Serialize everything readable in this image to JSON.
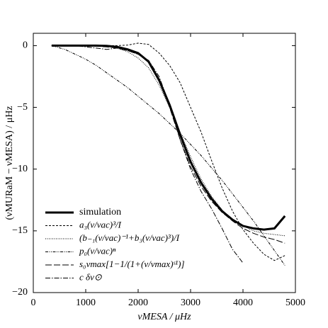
{
  "chart_data": {
    "type": "line",
    "x_label": "νMESA / μHz",
    "y_label": "(νMURaM − νMESA) / μHz",
    "x": [
      350,
      600,
      800,
      1000,
      1200,
      1400,
      1600,
      1800,
      2000,
      2200,
      2400,
      2600,
      2800,
      3000,
      3200,
      3400,
      3600,
      3800,
      4000,
      4200,
      4400,
      4600,
      4800
    ],
    "series": [
      {
        "name": "simulation",
        "color": "#000000",
        "values": [
          0,
          0,
          0,
          0,
          0,
          -0.02,
          -0.1,
          -0.3,
          -0.6,
          -1.3,
          -2.8,
          -4.8,
          -7.2,
          -9.4,
          -11.1,
          -12.4,
          -13.4,
          -14.1,
          -14.6,
          -14.8,
          -14.9,
          -14.8,
          -13.8
        ]
      },
      {
        "name": "a₃(ν/νac)³/I",
        "color": "#000000",
        "values": [
          0,
          0,
          0,
          0,
          0,
          0,
          0,
          0.05,
          0.2,
          0.1,
          -0.6,
          -1.6,
          -3,
          -5,
          -7,
          -9.3,
          -11.5,
          -13.4,
          -14.9,
          -16,
          -16.9,
          -17.4,
          -17
        ]
      },
      {
        "name": "(b₋₁(ν/νac)⁻¹+b₃(ν/νac)³)/I",
        "color": "#000000",
        "values": [
          0,
          0,
          0,
          0,
          0,
          -0.05,
          -0.2,
          -0.5,
          -1,
          -1.8,
          -3.2,
          -5,
          -7,
          -9,
          -10.8,
          -12.2,
          -13.3,
          -14.1,
          -14.6,
          -15,
          -15.2,
          -15.3,
          -15.4
        ]
      },
      {
        "name": "p₀(ν/νac)ⁿ",
        "color": "#000000",
        "values": [
          0,
          -0.3,
          -0.7,
          -1.1,
          -1.6,
          -2.2,
          -2.8,
          -3.4,
          -4.1,
          -4.8,
          -5.5,
          -6.3,
          -7.1,
          -8,
          -8.9,
          -9.9,
          -10.9,
          -12,
          -13.1,
          -14.2,
          -15.4,
          -16.6,
          -17.8
        ]
      },
      {
        "name": "s₀νmax[1−1/(1+(ν/νmax)ˢ¹)]",
        "color": "#000000",
        "values": [
          0,
          0,
          0,
          0,
          -0.05,
          -0.1,
          -0.2,
          -0.4,
          -0.7,
          -1.3,
          -2.8,
          -5,
          -7.6,
          -9.8,
          -11.4,
          -12.6,
          -13.5,
          -14.2,
          -14.8,
          -15.2,
          -15.5,
          -15.7,
          -16
        ]
      },
      {
        "name": "c δν⊙",
        "color": "#000000",
        "values": [
          0,
          0,
          0,
          -0.1,
          -0.2,
          -0.3,
          -0.2,
          -0.4,
          -0.7,
          -1.2,
          -2.5,
          -4.8,
          -7.6,
          -10,
          -11.8,
          -13.2,
          -14.8,
          -16.5,
          -17.6,
          null,
          null,
          null,
          null
        ]
      }
    ],
    "xlim": [
      0,
      5000
    ],
    "xticks": [
      0,
      1000,
      2000,
      3000,
      4000,
      5000
    ],
    "ylim": [
      -20,
      1
    ],
    "yticks": [
      {
        "value": -20,
        "label": "−20"
      },
      {
        "value": -15,
        "label": "−15"
      },
      {
        "value": -10,
        "label": "−10"
      },
      {
        "value": -5,
        "label": "−5"
      },
      0
    ],
    "legend": "lower left"
  }
}
